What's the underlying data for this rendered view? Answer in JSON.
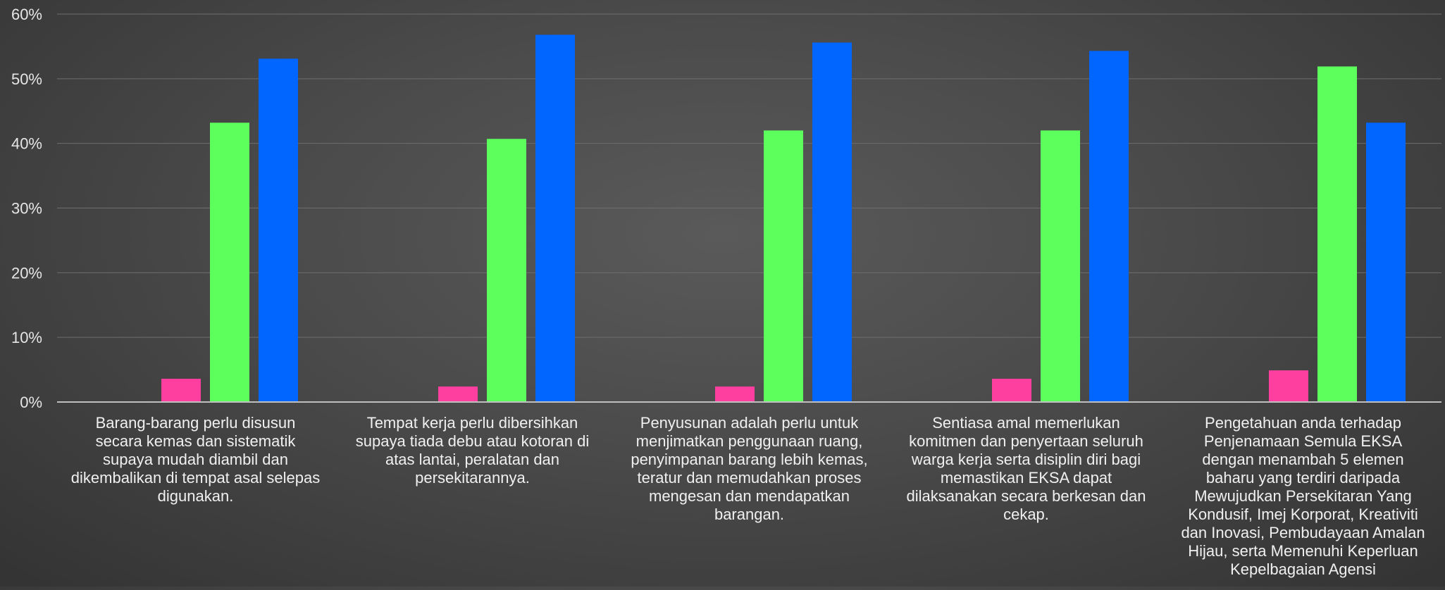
{
  "chart_data": {
    "type": "bar",
    "categories": [
      "Barang-barang perlu disusun secara kemas dan sistematik supaya mudah diambil dan dikembalikan di tempat asal selepas digunakan.",
      "Tempat kerja perlu dibersihkan supaya tiada debu atau kotoran di atas lantai, peralatan dan persekitarannya.",
      "Penyusunan adalah perlu untuk menjimatkan penggunaan ruang, penyimpanan barang lebih kemas, teratur dan memudahkan proses mengesan dan mendapatkan barangan.",
      "Sentiasa amal memerlukan komitmen dan penyertaan seluruh warga kerja serta disiplin diri bagi memastikan EKSA dapat dilaksanakan secara berkesan dan cekap.",
      "Pengetahuan anda terhadap Penjenamaan Semula EKSA dengan menambah 5 elemen baharu yang terdiri daripada Mewujudkan Persekitaran Yang Kondusif, Imej Korporat, Kreativiti dan Inovasi, Pembudayaan Amalan Hijau, serta Memenuhi Keperluan Kepelbagaian Agensi"
    ],
    "category_lines": [
      [
        "Barang-barang perlu disusun",
        "secara kemas dan sistematik",
        "supaya mudah diambil dan",
        "dikembalikan di tempat asal selepas",
        "digunakan."
      ],
      [
        "Tempat kerja perlu dibersihkan",
        "supaya tiada debu atau kotoran di",
        "atas lantai, peralatan dan",
        "persekitarannya."
      ],
      [
        "Penyusunan adalah perlu untuk",
        "menjimatkan penggunaan ruang,",
        "penyimpanan barang lebih kemas,",
        "teratur dan memudahkan proses",
        "mengesan dan mendapatkan",
        "barangan."
      ],
      [
        "Sentiasa amal memerlukan",
        "komitmen dan penyertaan seluruh",
        "warga kerja serta disiplin diri bagi",
        "memastikan EKSA dapat",
        "dilaksanakan secara berkesan dan",
        "cekap."
      ],
      [
        "Pengetahuan anda terhadap",
        "Penjenamaan Semula EKSA",
        "dengan menambah 5 elemen",
        "baharu yang terdiri daripada",
        "Mewujudkan Persekitaran Yang",
        "Kondusif, Imej Korporat, Kreativiti",
        "dan Inovasi, Pembudayaan Amalan",
        "Hijau, serta Memenuhi Keperluan",
        "Kepelbagaian Agensi"
      ]
    ],
    "series": [
      {
        "color": "#ff3fa0",
        "values": [
          3.6,
          2.4,
          2.4,
          3.6,
          4.9
        ]
      },
      {
        "color": "#5cff5c",
        "values": [
          43.2,
          40.7,
          42.0,
          42.0,
          51.9
        ]
      },
      {
        "color": "#0066ff",
        "values": [
          53.1,
          56.8,
          55.6,
          54.3,
          43.2
        ]
      }
    ],
    "series_count_slots": 4,
    "ylim": [
      0,
      60
    ],
    "yticks": [
      0,
      10,
      20,
      30,
      40,
      50,
      60
    ],
    "ytick_labels": [
      "0%",
      "10%",
      "20%",
      "30%",
      "40%",
      "50%",
      "60%"
    ],
    "grid": true,
    "title": "",
    "xlabel": "",
    "ylabel": ""
  }
}
